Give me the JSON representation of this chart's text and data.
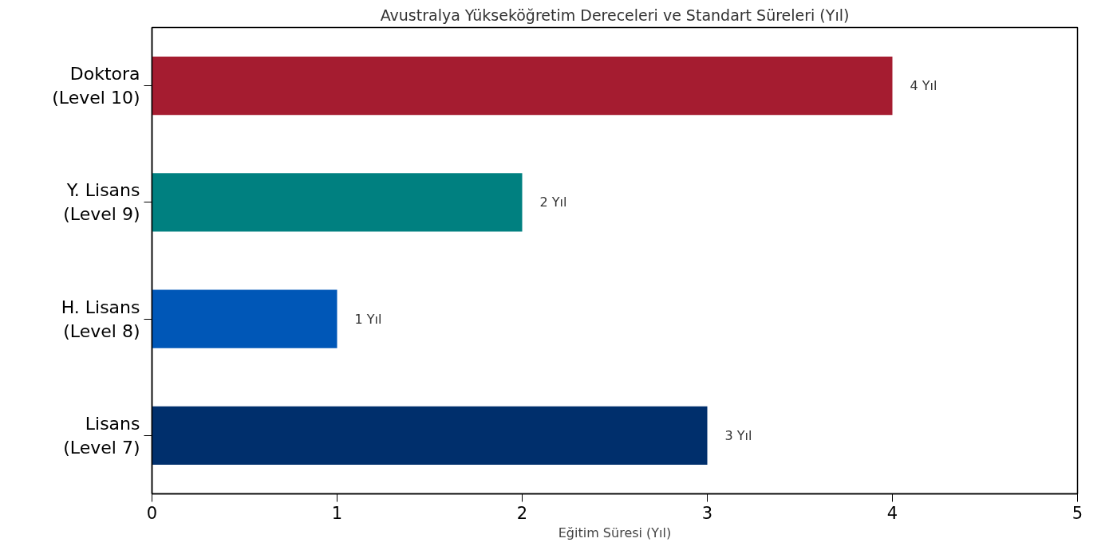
{
  "chart_data": {
    "type": "bar",
    "orientation": "horizontal",
    "title": "Avustralya Yükseköğretim Dereceleri ve Standart Süreleri (Yıl)",
    "xlabel": "Eğitim Süresi (Yıl)",
    "categories": [
      "Doktora\n(Level 10)",
      "Y. Lisans\n(Level 9)",
      "H. Lisans\n(Level 8)",
      "Lisans\n(Level 7)"
    ],
    "values": [
      4,
      2,
      1,
      3
    ],
    "colors": [
      "#a51c30",
      "#008080",
      "#0057b7",
      "#002f6c"
    ],
    "value_labels": [
      "4 Yıl",
      "2 Yıl",
      "1 Yıl",
      "3 Yıl"
    ],
    "xlim": [
      0,
      5
    ],
    "xticks": [
      0,
      1,
      2,
      3,
      4,
      5
    ],
    "grid": false
  }
}
